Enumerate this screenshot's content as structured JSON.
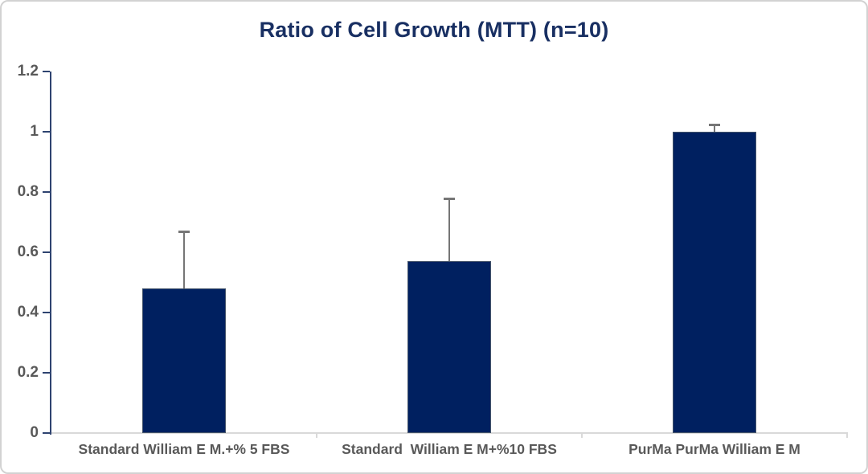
{
  "window": {
    "background_color": "#ffffff",
    "border_color": "#d2d2d2"
  },
  "chart_data": {
    "type": "bar",
    "title": "Ratio of Cell Growth (MTT) (n=10)",
    "xlabel": "",
    "ylabel": "",
    "categories": [
      "Standard William E M.+% 5 FBS",
      "Standard  William E M+%10 FBS",
      "PurMa PurMa William E M"
    ],
    "values": [
      0.48,
      0.57,
      1.0
    ],
    "error_plus": [
      0.19,
      0.21,
      0.025
    ],
    "error_direction": "plus-only",
    "ylim": [
      0,
      1.2
    ],
    "yticks": [
      0,
      0.2,
      0.4,
      0.6,
      0.8,
      1,
      1.2
    ],
    "ytick_labels": [
      "0",
      "0.2",
      "0.4",
      "0.6",
      "0.8",
      "1",
      "1.2"
    ],
    "grid": false,
    "legend": false,
    "bar_color": "#002060",
    "bar_border_color": "#44546a",
    "title_color": "#182f62",
    "tick_label_color": "#595959",
    "y_axis_line_color": "#2e4370",
    "x_axis_line_color": "#d9d9d9",
    "error_bar_color": "#767676"
  }
}
